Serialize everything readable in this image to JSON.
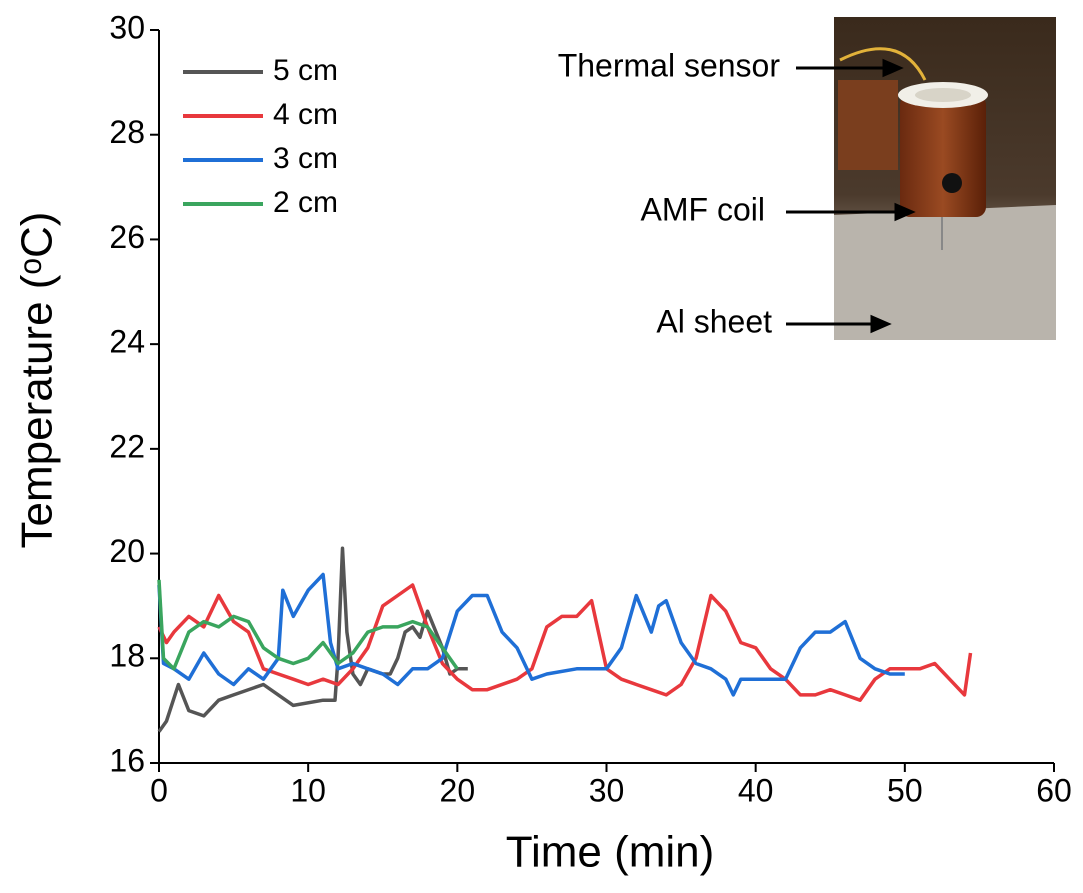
{
  "chart_data": {
    "type": "line",
    "xlabel": "Time (min)",
    "ylabel": "Temperature (ᵒC)",
    "xlim": [
      0,
      60
    ],
    "xticks": [
      0,
      10,
      20,
      30,
      40,
      50,
      60
    ],
    "ylim": [
      16,
      30
    ],
    "yticks": [
      16,
      18,
      20,
      22,
      24,
      26,
      28,
      30
    ],
    "legend": "upper left",
    "annotations": [
      "Thermal sensor",
      "AMF coil",
      "Al sheet"
    ],
    "series": [
      {
        "name": "5 cm",
        "color": "#555555",
        "x": [
          0,
          0.5,
          1.3,
          2,
          3,
          4,
          5,
          7,
          8,
          9,
          11,
          11.8,
          12,
          12.3,
          12.6,
          13,
          13.5,
          14,
          15,
          15.5,
          16,
          16.5,
          17,
          17.5,
          18,
          19,
          19.5,
          20,
          20.7
        ],
        "values": [
          16.6,
          16.8,
          17.5,
          17.0,
          16.9,
          17.2,
          17.3,
          17.5,
          17.3,
          17.1,
          17.2,
          17.2,
          18.0,
          20.1,
          18.5,
          17.7,
          17.5,
          17.8,
          17.7,
          17.7,
          18.0,
          18.5,
          18.6,
          18.4,
          18.9,
          18.2,
          17.7,
          17.8,
          17.8
        ]
      },
      {
        "name": "4 cm",
        "color": "#e8383d",
        "x": [
          0,
          0.5,
          1,
          2,
          3,
          4,
          5,
          6,
          7,
          8,
          9,
          10,
          11,
          12,
          13,
          14,
          15,
          16,
          17,
          18,
          19,
          20,
          21,
          22,
          24,
          25,
          26,
          27,
          28,
          29,
          30,
          31,
          32,
          33,
          34,
          35,
          36,
          37,
          38,
          39,
          40,
          41,
          42,
          43,
          44,
          45,
          46,
          47,
          48,
          49,
          50,
          51,
          52,
          53,
          54,
          54.4
        ],
        "values": [
          18.6,
          18.3,
          18.5,
          18.8,
          18.6,
          19.2,
          18.7,
          18.5,
          17.8,
          17.7,
          17.6,
          17.5,
          17.6,
          17.5,
          17.8,
          18.2,
          19.0,
          19.2,
          19.4,
          18.6,
          17.9,
          17.6,
          17.4,
          17.4,
          17.6,
          17.8,
          18.6,
          18.8,
          18.8,
          19.1,
          17.8,
          17.6,
          17.5,
          17.4,
          17.3,
          17.5,
          18.0,
          19.2,
          18.9,
          18.3,
          18.2,
          17.8,
          17.6,
          17.3,
          17.3,
          17.4,
          17.3,
          17.2,
          17.6,
          17.8,
          17.8,
          17.8,
          17.9,
          17.6,
          17.3,
          18.1
        ]
      },
      {
        "name": "3 cm",
        "color": "#1f6fd6",
        "x": [
          0,
          0.3,
          1,
          2,
          3,
          4,
          5,
          6,
          7,
          8,
          8.3,
          9,
          10,
          11,
          11.5,
          12,
          13,
          14,
          15,
          16,
          17,
          18,
          19,
          20,
          21,
          22,
          23,
          24,
          25,
          26,
          28,
          30,
          31,
          32,
          33,
          33.5,
          34,
          35,
          36,
          37,
          38,
          38.5,
          39,
          41,
          42,
          43,
          44,
          45,
          46,
          47,
          48,
          49,
          50
        ],
        "values": [
          19.4,
          17.9,
          17.8,
          17.6,
          18.1,
          17.7,
          17.5,
          17.8,
          17.6,
          18.0,
          19.3,
          18.8,
          19.3,
          19.6,
          18.3,
          17.8,
          17.9,
          17.8,
          17.7,
          17.5,
          17.8,
          17.8,
          18.0,
          18.9,
          19.2,
          19.2,
          18.5,
          18.2,
          17.6,
          17.7,
          17.8,
          17.8,
          18.2,
          19.2,
          18.5,
          19.0,
          19.1,
          18.3,
          17.9,
          17.8,
          17.6,
          17.3,
          17.6,
          17.6,
          17.6,
          18.2,
          18.5,
          18.5,
          18.7,
          18.0,
          17.8,
          17.7,
          17.7
        ]
      },
      {
        "name": "2 cm",
        "color": "#3aa55e",
        "x": [
          0,
          0.3,
          1,
          2,
          3,
          4,
          5,
          6,
          7,
          8,
          9,
          10,
          11,
          12,
          13,
          14,
          15,
          16,
          17,
          18,
          19,
          20
        ],
        "values": [
          19.5,
          18.0,
          17.8,
          18.5,
          18.7,
          18.6,
          18.8,
          18.7,
          18.2,
          18.0,
          17.9,
          18.0,
          18.3,
          17.9,
          18.1,
          18.5,
          18.6,
          18.6,
          18.7,
          18.6,
          18.2,
          17.8
        ]
      }
    ]
  }
}
